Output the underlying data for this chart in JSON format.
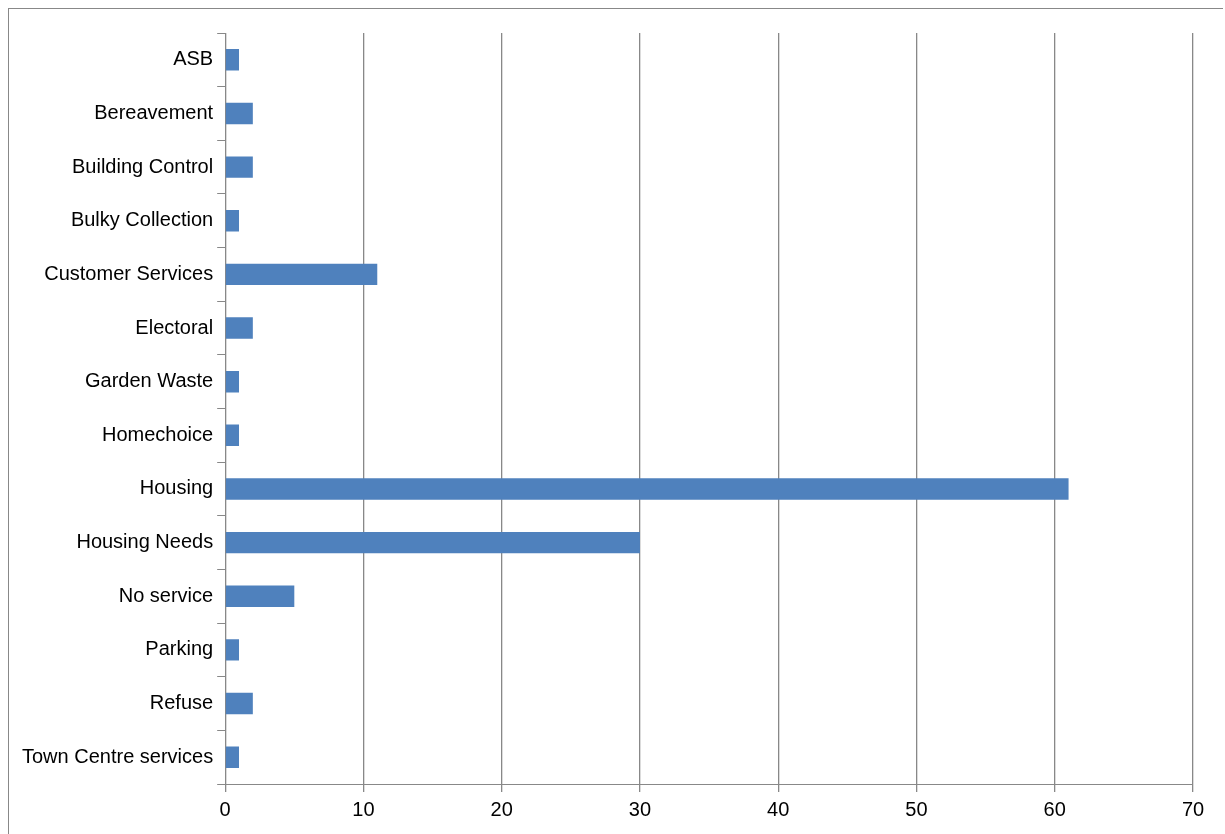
{
  "chart_data": {
    "type": "bar",
    "orientation": "horizontal",
    "categories": [
      "ASB",
      "Bereavement",
      "Building Control",
      "Bulky Collection",
      "Customer Services",
      "Electoral",
      "Garden Waste",
      "Homechoice",
      "Housing",
      "Housing Needs",
      "No service",
      "Parking",
      "Refuse",
      "Town Centre services"
    ],
    "values": [
      1,
      2,
      2,
      1,
      11,
      2,
      1,
      1,
      61,
      30,
      5,
      1,
      2,
      1
    ],
    "color": "#4f81bd",
    "xlim": [
      0,
      70
    ],
    "xticks": [
      0,
      10,
      20,
      30,
      40,
      50,
      60,
      70
    ],
    "grid": "x",
    "legend": false
  }
}
